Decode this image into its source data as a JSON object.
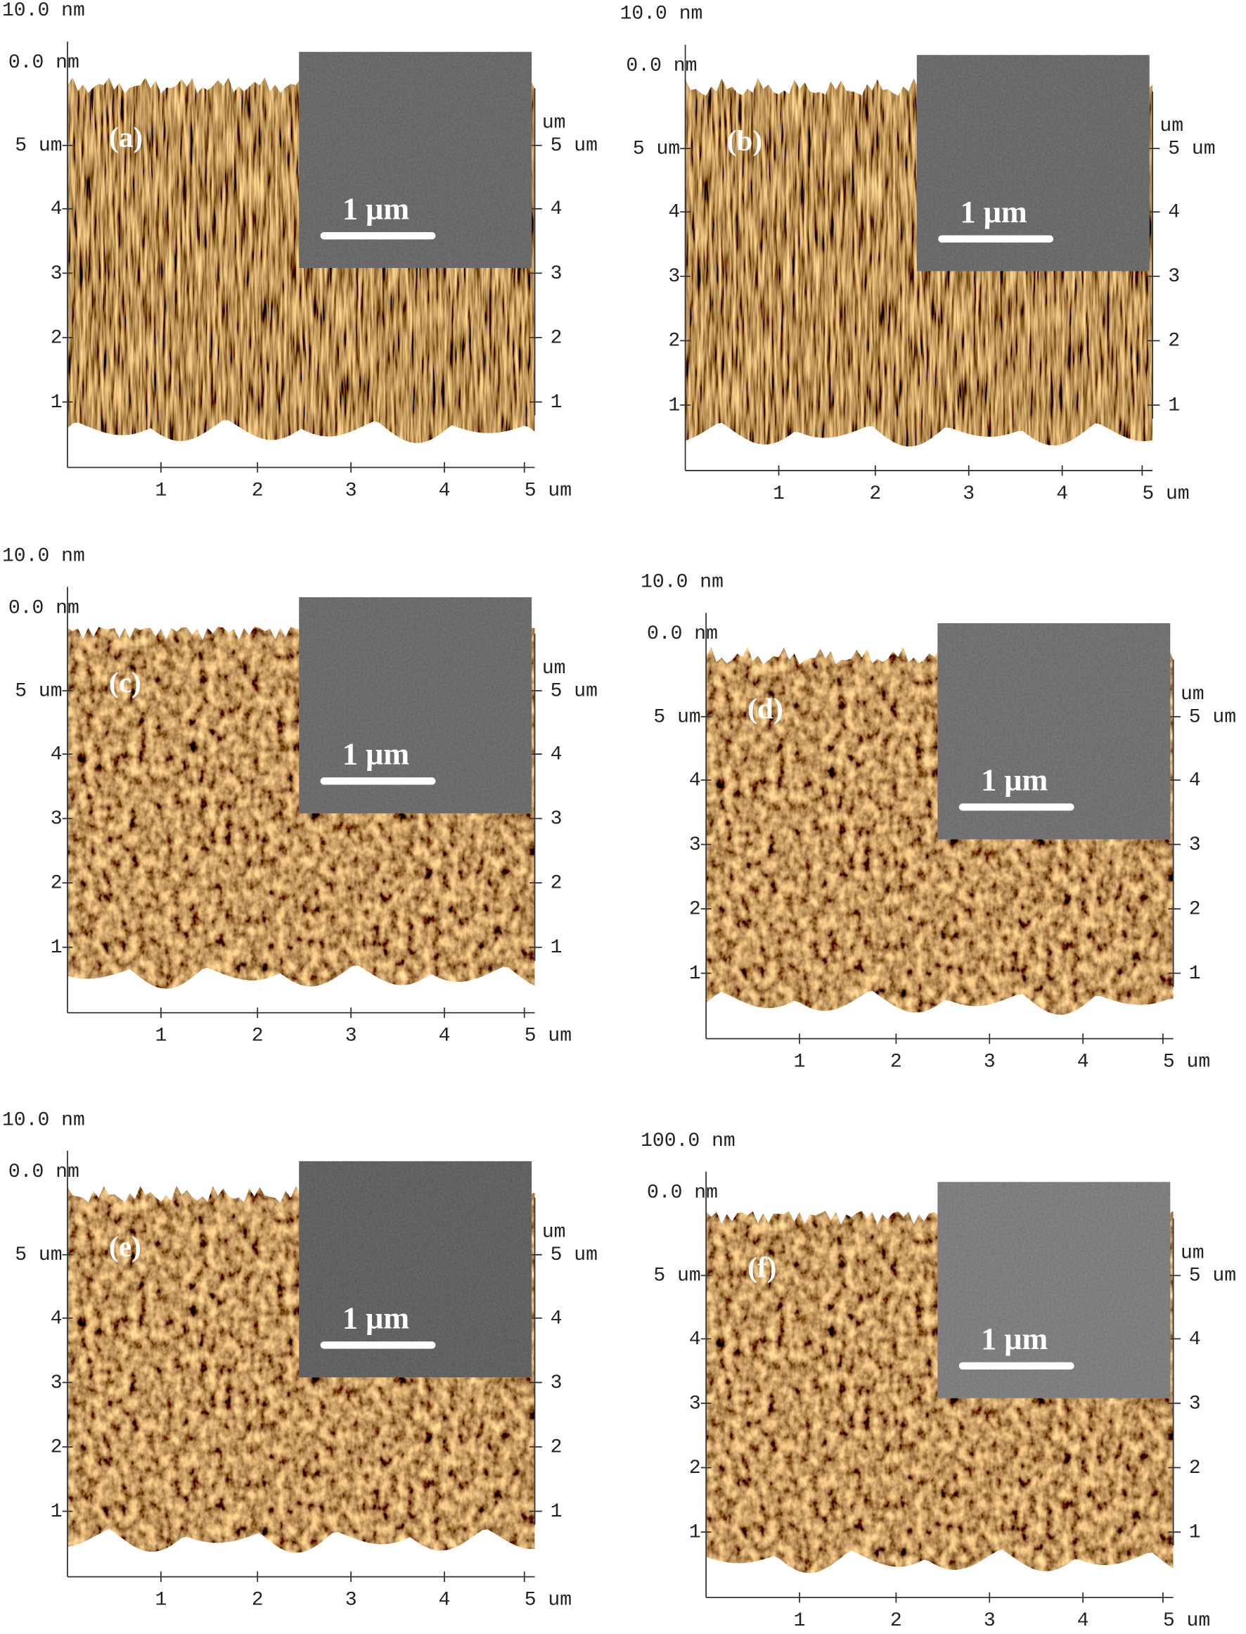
{
  "panels": [
    {
      "label": "(a)",
      "z_max": "10.0 nm",
      "z_min": "0.0 nm",
      "y_ticks": [
        "5 um",
        "4",
        "3",
        "2",
        "1"
      ],
      "y2_unit": "um",
      "y2_ticks": [
        "5 um",
        "4",
        "3",
        "2",
        "1"
      ],
      "x_ticks": [
        "1",
        "2",
        "3",
        "4",
        "5 um"
      ],
      "scale_bar": "1 μm"
    },
    {
      "label": "(b)",
      "z_max": "10.0 nm",
      "z_min": "0.0 nm",
      "y_ticks": [
        "5 um",
        "4",
        "3",
        "2",
        "1"
      ],
      "y2_unit": "um",
      "y2_ticks": [
        "5 um",
        "4",
        "3",
        "2",
        "1"
      ],
      "x_ticks": [
        "1",
        "2",
        "3",
        "4",
        "5 um"
      ],
      "scale_bar": "1 μm"
    },
    {
      "label": "(c)",
      "z_max": "10.0 nm",
      "z_min": "0.0 nm",
      "y_ticks": [
        "5 um",
        "4",
        "3",
        "2",
        "1"
      ],
      "y2_unit": "um",
      "y2_ticks": [
        "5 um",
        "4",
        "3",
        "2",
        "1"
      ],
      "x_ticks": [
        "1",
        "2",
        "3",
        "4",
        "5 um"
      ],
      "scale_bar": "1 μm"
    },
    {
      "label": "(d)",
      "z_max": "10.0 nm",
      "z_min": "0.0 nm",
      "y_ticks": [
        "5 um",
        "4",
        "3",
        "2",
        "1"
      ],
      "y2_unit": "um",
      "y2_ticks": [
        "5 um",
        "4",
        "3",
        "2",
        "1"
      ],
      "x_ticks": [
        "1",
        "2",
        "3",
        "4",
        "5 um"
      ],
      "scale_bar": "1 μm"
    },
    {
      "label": "(e)",
      "z_max": "10.0 nm",
      "z_min": "0.0 nm",
      "y_ticks": [
        "5 um",
        "4",
        "3",
        "2",
        "1"
      ],
      "y2_unit": "um",
      "y2_ticks": [
        "5 um",
        "4",
        "3",
        "2",
        "1"
      ],
      "x_ticks": [
        "1",
        "2",
        "3",
        "4",
        "5 um"
      ],
      "scale_bar": "1 μm"
    },
    {
      "label": "(f)",
      "z_max": "100.0 nm",
      "z_min": "0.0 nm",
      "y_ticks": [
        "5 um",
        "4",
        "3",
        "2",
        "1"
      ],
      "y2_unit": "um",
      "y2_ticks": [
        "5 um",
        "4",
        "3",
        "2",
        "1"
      ],
      "x_ticks": [
        "1",
        "2",
        "3",
        "4",
        "5 um"
      ],
      "scale_bar": "1 μm"
    }
  ]
}
